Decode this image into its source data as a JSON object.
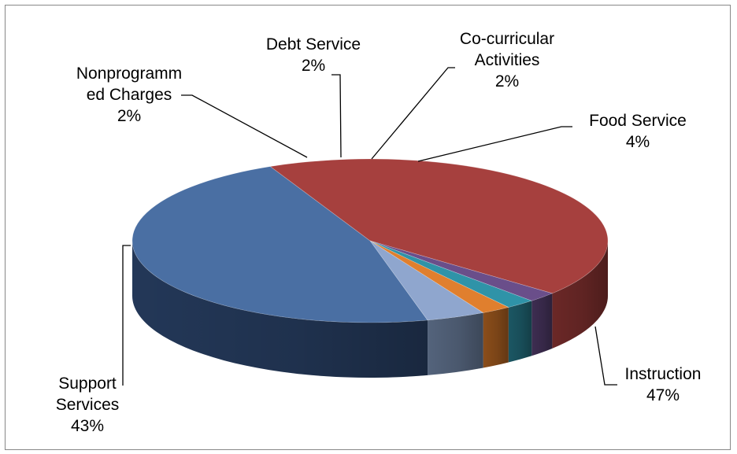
{
  "chart_data": {
    "type": "pie",
    "title": "",
    "categories": [
      "Instruction",
      "Support Services",
      "Nonprogrammed Charges",
      "Debt Service",
      "Co-curricular Activities",
      "Food Service"
    ],
    "values": [
      47,
      43,
      2,
      2,
      2,
      4
    ],
    "series": [
      {
        "values": [
          47,
          43,
          2,
          2,
          2,
          4
        ]
      }
    ],
    "slices": [
      {
        "label": "Instruction",
        "value": 47,
        "display": "47%",
        "color": "#4A6FA3",
        "dark": "#24395A"
      },
      {
        "label": "Support Services",
        "value": 43,
        "display": "43%",
        "color": "#A6403E",
        "dark": "#6E2928"
      },
      {
        "label": "Nonprogrammed Charges",
        "value": 2,
        "display": "2%",
        "color": "#6A4E8A",
        "dark": "#3F2E53"
      },
      {
        "label": "Debt Service",
        "value": 2,
        "display": "2%",
        "color": "#2F93A8",
        "dark": "#1C5966"
      },
      {
        "label": "Co-curricular Activities",
        "value": 2,
        "display": "2%",
        "color": "#E07F2E",
        "dark": "#8E4F1B"
      },
      {
        "label": "Food Service",
        "value": 4,
        "display": "4%",
        "color": "#8FA6CE",
        "dark": "#56667F"
      }
    ],
    "label_lines": {
      "instruction": [
        "Instruction",
        "47%"
      ],
      "support": [
        "Support",
        "Services",
        "43%"
      ],
      "nonprog": [
        "Nonprogramm",
        "ed Charges",
        "2%"
      ],
      "debt": [
        "Debt Service",
        "2%"
      ],
      "cocurr": [
        "Co-curricular",
        "Activities",
        "2%"
      ],
      "food": [
        "Food Service",
        "4%"
      ]
    },
    "legend": "none",
    "grid": false
  }
}
